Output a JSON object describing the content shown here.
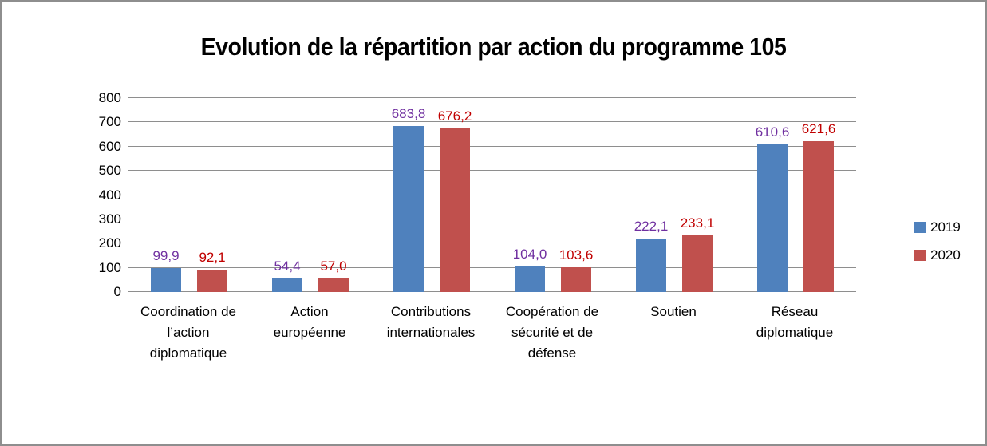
{
  "chart_data": {
    "type": "bar",
    "title": "Evolution de la répartition par action du programme 105",
    "categories": [
      "Coordination de l’action diplomatique",
      "Action européenne",
      "Contributions internationales",
      "Coopération de sécurité et de défense",
      "Soutien",
      "Réseau diplomatique"
    ],
    "category_lines": [
      [
        "Coordination de",
        "l’action",
        "diplomatique"
      ],
      [
        "Action",
        "européenne"
      ],
      [
        "Contributions",
        "internationales"
      ],
      [
        "Coopération de",
        "sécurité et de",
        "défense"
      ],
      [
        "Soutien"
      ],
      [
        "Réseau",
        "diplomatique"
      ]
    ],
    "series": [
      {
        "name": "2019",
        "color": "#4F81BD",
        "label_color": "#7030A0",
        "values": [
          99.9,
          54.4,
          683.8,
          104.0,
          222.1,
          610.6
        ],
        "labels": [
          "99,9",
          "54,4",
          "683,8",
          "104,0",
          "222,1",
          "610,6"
        ]
      },
      {
        "name": "2020",
        "color": "#C0504D",
        "label_color": "#C00000",
        "values": [
          92.1,
          57.0,
          676.2,
          103.6,
          233.1,
          621.6
        ],
        "labels": [
          "92,1",
          "57,0",
          "676,2",
          "103,6",
          "233,1",
          "621,6"
        ]
      }
    ],
    "ylim": [
      0,
      800
    ],
    "yticks": [
      0,
      100,
      200,
      300,
      400,
      500,
      600,
      700,
      800
    ],
    "xlabel": "",
    "ylabel": "",
    "grid": true,
    "legend_position": "right",
    "gridline_color": "#8e8e8e"
  }
}
